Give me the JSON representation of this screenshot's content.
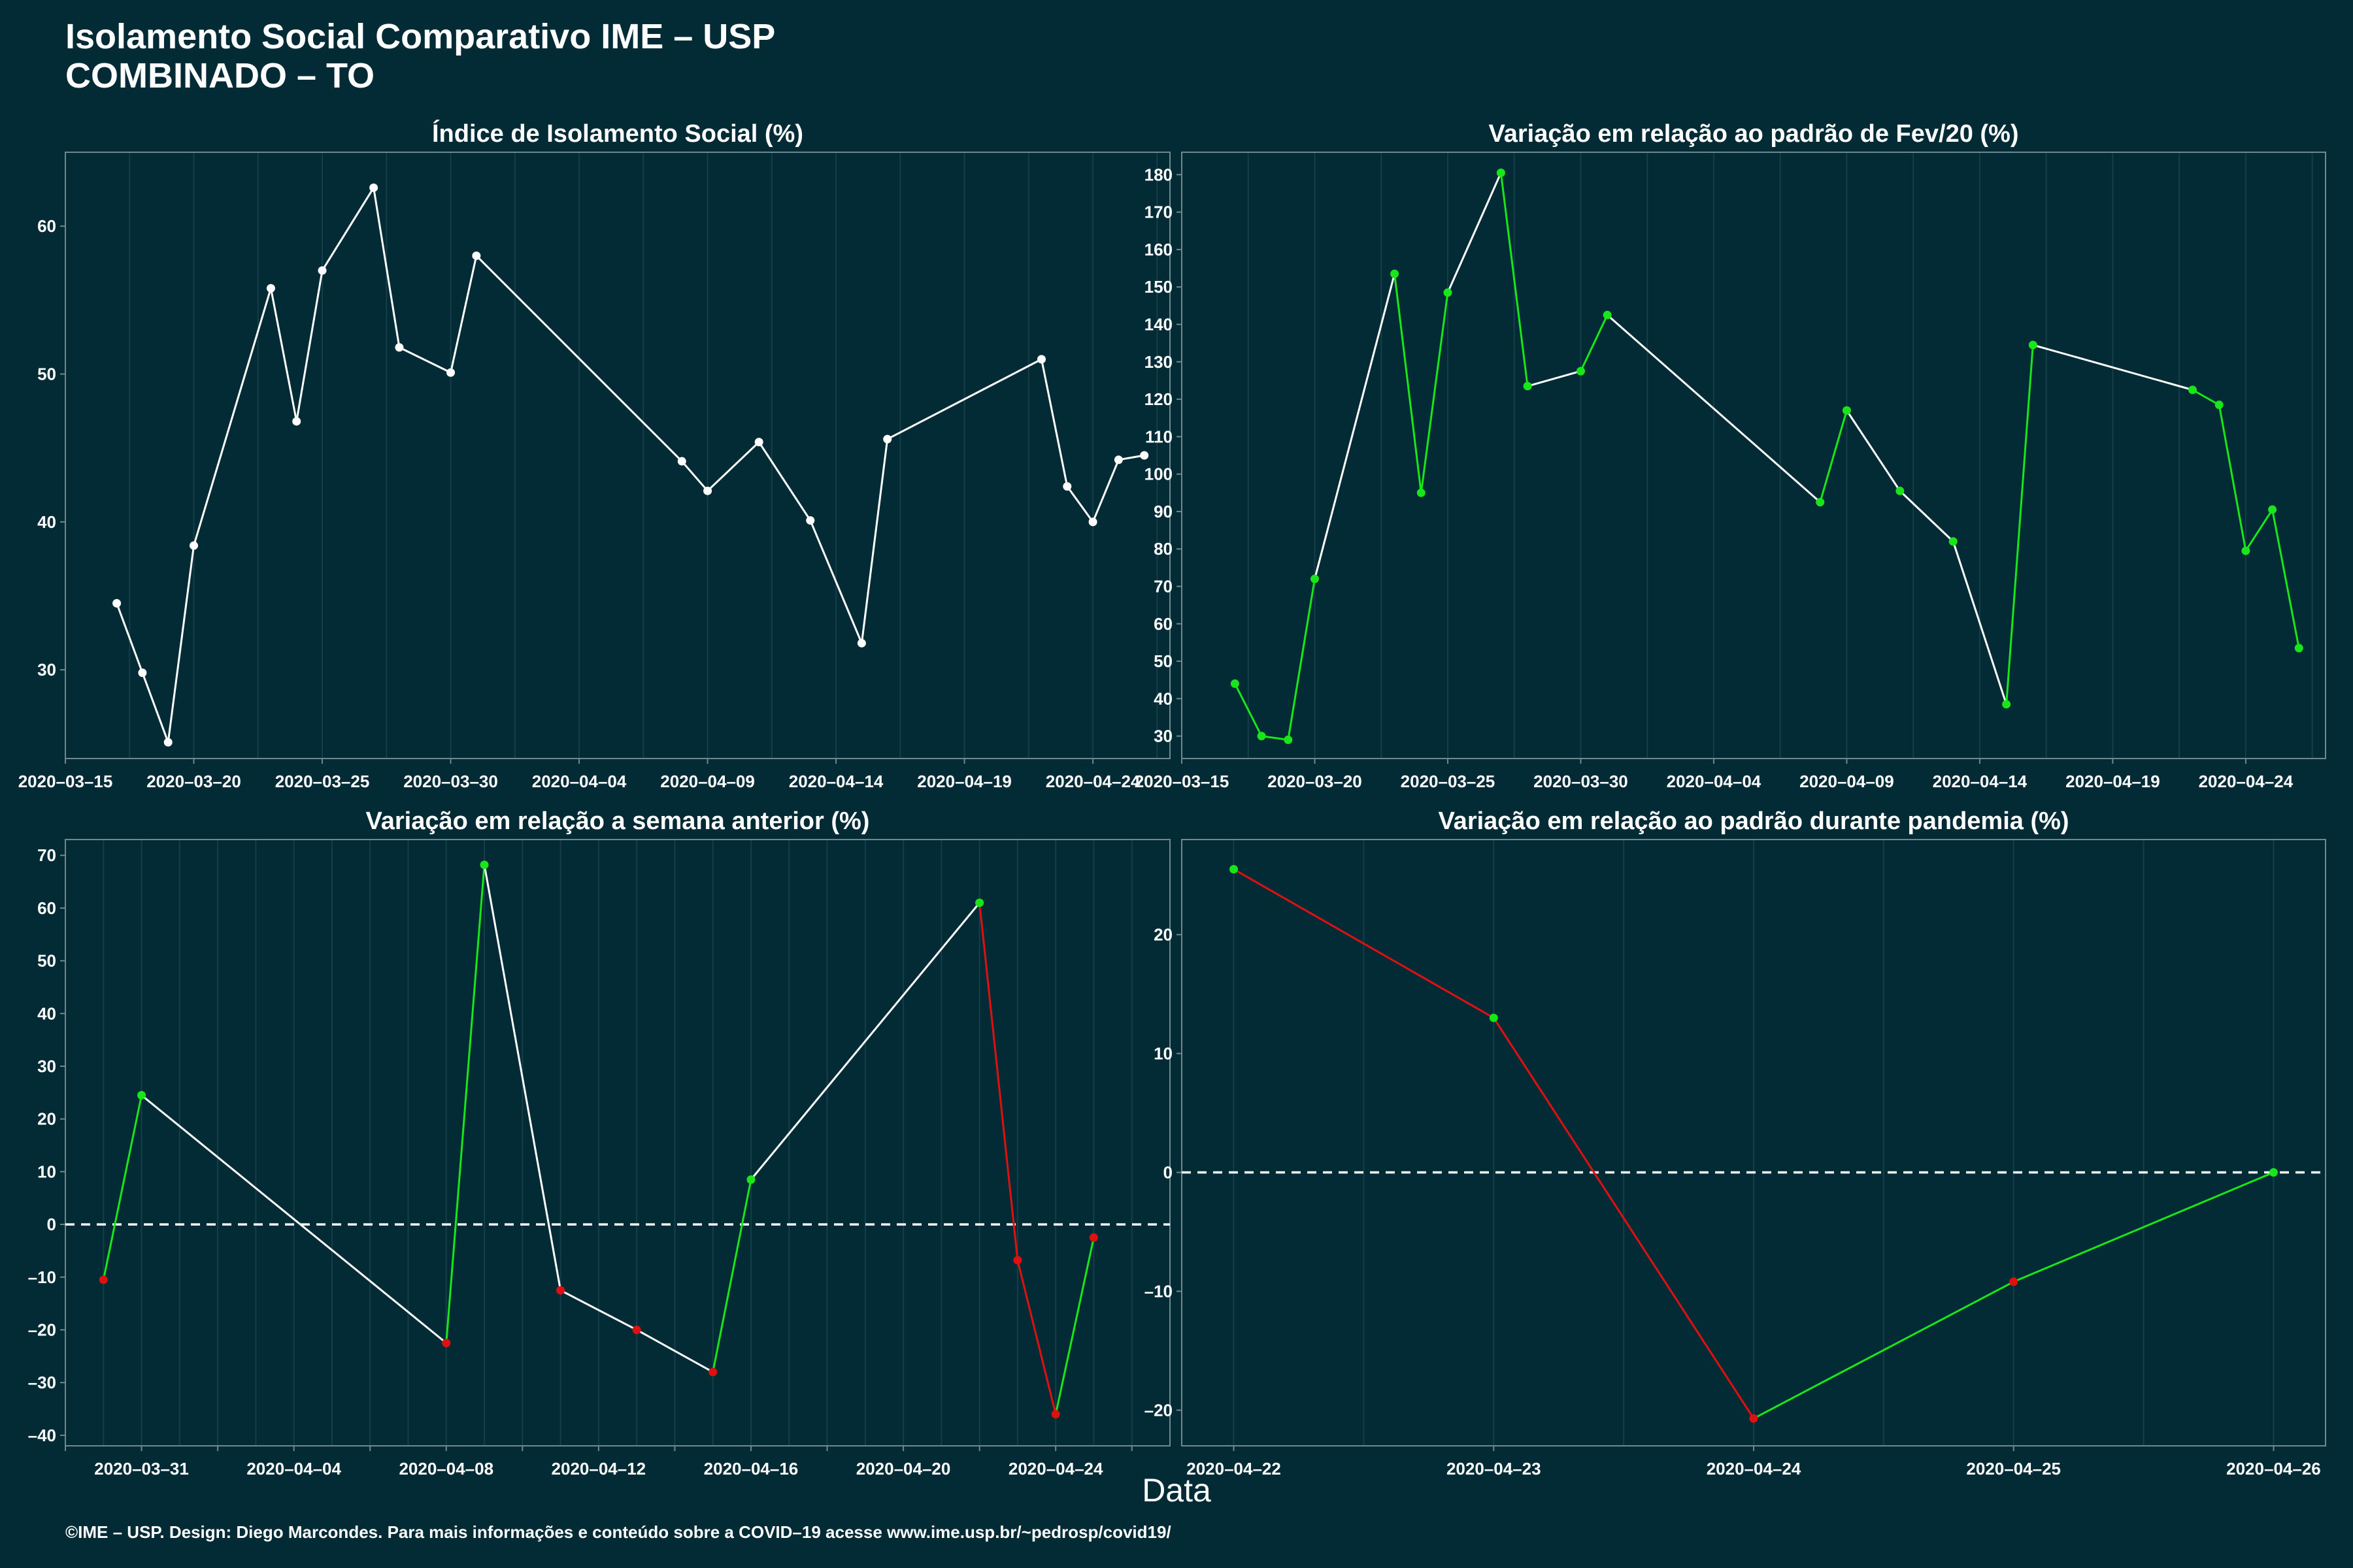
{
  "header": {
    "title_line1": "Isolamento Social Comparativo IME – USP",
    "title_line2": "COMBINADO – TO"
  },
  "footer": {
    "credit": "©IME – USP. Design: Diego Marcondes. Para mais informações e conteúdo sobre a COVID–19 acesse www.ime.usp.br/~pedrosp/covid19/"
  },
  "x_common_label": "Data",
  "colors": {
    "background": "#022b36",
    "axis": "#6e8a90",
    "grid": "#163e48",
    "line": "#ffffff",
    "positive": "#19e619",
    "negative": "#e01010"
  },
  "chart_data": [
    {
      "type": "line",
      "title": "Índice de Isolamento Social (%)",
      "x_type": "date",
      "xlim": [
        "2020-03-15",
        "2020-04-27"
      ],
      "ylim": [
        24,
        65
      ],
      "x_ticks": [
        "2020-03-15",
        "2020-03-20",
        "2020-03-25",
        "2020-03-30",
        "2020-04-04",
        "2020-04-09",
        "2020-04-14",
        "2020-04-19",
        "2020-04-24"
      ],
      "y_ticks": [
        30,
        40,
        50,
        60
      ],
      "x_tick_labels": [
        "2020–03–15",
        "2020–03–20",
        "2020–03–25",
        "2020–03–30",
        "2020–04–04",
        "2020–04–09",
        "2020–04–14",
        "2020–04–19",
        "2020–04–24"
      ],
      "y_tick_labels": [
        "30",
        "40",
        "50",
        "60"
      ],
      "color_mode": "white",
      "zero_line": false,
      "points": [
        {
          "x": "2020-03-17",
          "y": 34.5
        },
        {
          "x": "2020-03-18",
          "y": 29.8
        },
        {
          "x": "2020-03-19",
          "y": 25.1
        },
        {
          "x": "2020-03-20",
          "y": 38.4
        },
        {
          "x": "2020-03-23",
          "y": 55.8
        },
        {
          "x": "2020-03-24",
          "y": 46.8
        },
        {
          "x": "2020-03-25",
          "y": 57.0
        },
        {
          "x": "2020-03-27",
          "y": 62.6
        },
        {
          "x": "2020-03-28",
          "y": 51.8
        },
        {
          "x": "2020-03-30",
          "y": 50.1
        },
        {
          "x": "2020-03-31",
          "y": 58.0
        },
        {
          "x": "2020-04-08",
          "y": 44.1
        },
        {
          "x": "2020-04-09",
          "y": 42.1
        },
        {
          "x": "2020-04-11",
          "y": 45.4
        },
        {
          "x": "2020-04-13",
          "y": 40.1
        },
        {
          "x": "2020-04-15",
          "y": 31.8
        },
        {
          "x": "2020-04-16",
          "y": 45.6
        },
        {
          "x": "2020-04-22",
          "y": 51.0
        },
        {
          "x": "2020-04-23",
          "y": 42.4
        },
        {
          "x": "2020-04-24",
          "y": 40.0
        },
        {
          "x": "2020-04-25",
          "y": 44.2
        },
        {
          "x": "2020-04-26",
          "y": 44.5
        }
      ]
    },
    {
      "type": "line",
      "title": "Variação em relação ao padrão de Fev/20 (%)",
      "x_type": "date",
      "xlim": [
        "2020-03-15",
        "2020-04-27"
      ],
      "ylim": [
        24,
        186
      ],
      "x_ticks": [
        "2020-03-15",
        "2020-03-20",
        "2020-03-25",
        "2020-03-30",
        "2020-04-04",
        "2020-04-09",
        "2020-04-14",
        "2020-04-19",
        "2020-04-24"
      ],
      "y_ticks": [
        30,
        40,
        50,
        60,
        70,
        80,
        90,
        100,
        110,
        120,
        130,
        140,
        150,
        160,
        170,
        180
      ],
      "x_tick_labels": [
        "2020–03–15",
        "2020–03–20",
        "2020–03–25",
        "2020–03–30",
        "2020–04–04",
        "2020–04–09",
        "2020–04–14",
        "2020–04–19",
        "2020–04–24"
      ],
      "y_tick_labels": [
        "30",
        "40",
        "50",
        "60",
        "70",
        "80",
        "90",
        "100",
        "110",
        "120",
        "130",
        "140",
        "150",
        "160",
        "170",
        "180"
      ],
      "color_mode": "points-green",
      "zero_line": false,
      "points": [
        {
          "x": "2020-03-17",
          "y": 44.0
        },
        {
          "x": "2020-03-18",
          "y": 30.0
        },
        {
          "x": "2020-03-19",
          "y": 29.0
        },
        {
          "x": "2020-03-20",
          "y": 72.0
        },
        {
          "x": "2020-03-23",
          "y": 153.5
        },
        {
          "x": "2020-03-24",
          "y": 95.0
        },
        {
          "x": "2020-03-25",
          "y": 148.5
        },
        {
          "x": "2020-03-27",
          "y": 180.5
        },
        {
          "x": "2020-03-28",
          "y": 123.5
        },
        {
          "x": "2020-03-30",
          "y": 127.5
        },
        {
          "x": "2020-03-31",
          "y": 142.5
        },
        {
          "x": "2020-04-08",
          "y": 92.5
        },
        {
          "x": "2020-04-09",
          "y": 117.0
        },
        {
          "x": "2020-04-11",
          "y": 95.5
        },
        {
          "x": "2020-04-13",
          "y": 82.0
        },
        {
          "x": "2020-04-15",
          "y": 38.5
        },
        {
          "x": "2020-04-16",
          "y": 134.5
        },
        {
          "x": "2020-04-22",
          "y": 122.5
        },
        {
          "x": "2020-04-23",
          "y": 118.5
        },
        {
          "x": "2020-04-24",
          "y": 79.5
        },
        {
          "x": "2020-04-25",
          "y": 90.5
        },
        {
          "x": "2020-04-26",
          "y": 53.5
        }
      ]
    },
    {
      "type": "line",
      "title": "Variação em relação a semana anterior (%)",
      "x_type": "date",
      "xlim": [
        "2020-03-29",
        "2020-04-27"
      ],
      "ylim": [
        -42,
        73
      ],
      "x_ticks": [
        "2020-03-29",
        "2020-03-31",
        "2020-04-02",
        "2020-04-04",
        "2020-04-06",
        "2020-04-08",
        "2020-04-10",
        "2020-04-12",
        "2020-04-14",
        "2020-04-16",
        "2020-04-18",
        "2020-04-20",
        "2020-04-22",
        "2020-04-24",
        "2020-04-26"
      ],
      "x_tick_labels": [
        "",
        "2020–03–31",
        "",
        "2020–04–04",
        "",
        "2020–04–08",
        "",
        "2020–04–12",
        "",
        "2020–04–16",
        "",
        "2020–04–20",
        "",
        "2020–04–24",
        ""
      ],
      "y_ticks": [
        -40,
        -30,
        -20,
        -10,
        0,
        10,
        20,
        30,
        40,
        50,
        60,
        70
      ],
      "y_tick_labels": [
        "–40",
        "–30",
        "–20",
        "–10",
        "0",
        "10",
        "20",
        "30",
        "40",
        "50",
        "60",
        "70"
      ],
      "color_mode": "sign",
      "zero_line": true,
      "points": [
        {
          "x": "2020-03-30",
          "y": -10.5
        },
        {
          "x": "2020-03-31",
          "y": 24.5
        },
        {
          "x": "2020-04-08",
          "y": -22.5
        },
        {
          "x": "2020-04-09",
          "y": 68.2
        },
        {
          "x": "2020-04-11",
          "y": -12.5
        },
        {
          "x": "2020-04-13",
          "y": -20.0
        },
        {
          "x": "2020-04-15",
          "y": -28.0
        },
        {
          "x": "2020-04-16",
          "y": 8.5
        },
        {
          "x": "2020-04-22",
          "y": 61.0
        },
        {
          "x": "2020-04-23",
          "y": -6.8
        },
        {
          "x": "2020-04-24",
          "y": -36.0
        },
        {
          "x": "2020-04-25",
          "y": -2.5
        }
      ]
    },
    {
      "type": "line",
      "title": "Variação em relação ao padrão durante pandemia (%)",
      "x_type": "date",
      "xlim": [
        "2020-04-21.8",
        "2020-04-26.2"
      ],
      "ylim": [
        -23,
        28
      ],
      "x_ticks": [
        "2020-04-22",
        "2020-04-23",
        "2020-04-24",
        "2020-04-25",
        "2020-04-26"
      ],
      "x_tick_labels": [
        "2020–04–22",
        "2020–04–23",
        "2020–04–24",
        "2020–04–25",
        "2020–04–26"
      ],
      "y_ticks": [
        -20,
        -10,
        0,
        10,
        20
      ],
      "y_tick_labels": [
        "–20",
        "–10",
        "0",
        "10",
        "20"
      ],
      "color_mode": "sign",
      "zero_line": true,
      "points": [
        {
          "x": "2020-04-22",
          "y": 25.5
        },
        {
          "x": "2020-04-23",
          "y": 13.0
        },
        {
          "x": "2020-04-24",
          "y": -20.7
        },
        {
          "x": "2020-04-25",
          "y": -9.2
        },
        {
          "x": "2020-04-26",
          "y": 0.0
        }
      ]
    }
  ]
}
